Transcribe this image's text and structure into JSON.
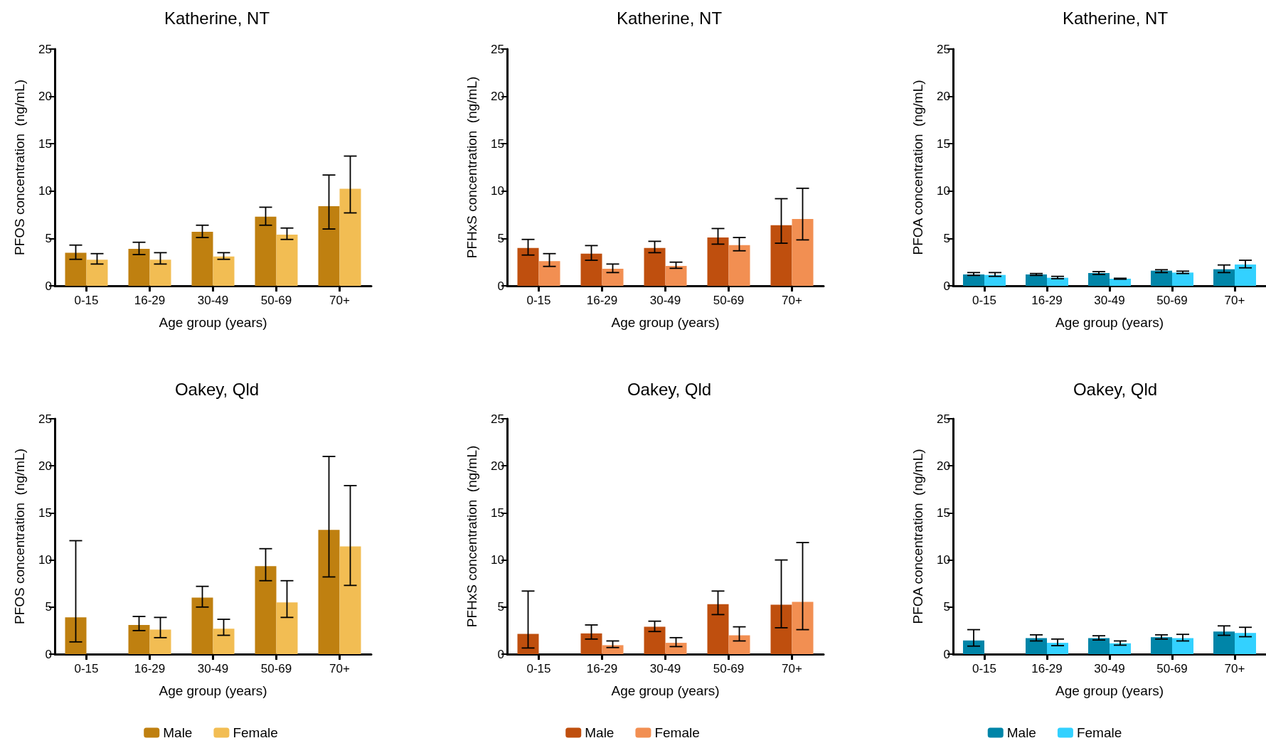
{
  "chart_data": [
    {
      "type": "bar",
      "title": "Katherine, NT",
      "xlabel": "Age group (years)",
      "ylabel": "PFOS concentration  (ng/mL)",
      "categories": [
        "0-15",
        "16-29",
        "30-49",
        "50-69",
        "70+"
      ],
      "ylim": [
        0,
        25
      ],
      "yticks": [
        0,
        5,
        10,
        15,
        20,
        25
      ],
      "series": [
        {
          "color": "#bf8010",
          "values": [
            3.5,
            3.9,
            5.7,
            7.3,
            8.4
          ],
          "errors": [
            [
              2.8,
              4.3
            ],
            [
              3.3,
              4.6
            ],
            [
              5.1,
              6.4
            ],
            [
              6.4,
              8.3
            ],
            [
              6.0,
              11.7
            ]
          ]
        },
        {
          "color": "#f2bd53",
          "values": [
            2.75,
            2.75,
            3.1,
            5.4,
            10.25
          ],
          "errors": [
            [
              2.3,
              3.4
            ],
            [
              2.3,
              3.5
            ],
            [
              2.8,
              3.5
            ],
            [
              4.9,
              6.1
            ],
            [
              7.7,
              13.7
            ]
          ]
        }
      ]
    },
    {
      "type": "bar",
      "title": "Katherine, NT",
      "xlabel": "Age group (years)",
      "ylabel": "PFHxS concentration  (ng/mL)",
      "categories": [
        "0-15",
        "16-29",
        "30-49",
        "50-69",
        "70+"
      ],
      "ylim": [
        0,
        25
      ],
      "yticks": [
        0,
        5,
        10,
        15,
        20,
        25
      ],
      "series": [
        {
          "color": "#bf4f0e",
          "values": [
            4.0,
            3.4,
            4.0,
            5.1,
            6.4
          ],
          "errors": [
            [
              3.25,
              4.9
            ],
            [
              2.7,
              4.25
            ],
            [
              3.5,
              4.7
            ],
            [
              4.4,
              6.05
            ],
            [
              4.5,
              9.2
            ]
          ]
        },
        {
          "color": "#f28f52",
          "values": [
            2.6,
            1.8,
            2.1,
            4.3,
            7.05
          ],
          "errors": [
            [
              2.05,
              3.4
            ],
            [
              1.4,
              2.3
            ],
            [
              1.85,
              2.5
            ],
            [
              3.7,
              5.1
            ],
            [
              4.85,
              10.3
            ]
          ]
        }
      ]
    },
    {
      "type": "bar",
      "title": "Katherine, NT",
      "xlabel": "Age group (years)",
      "ylabel": "PFOA concentration  (ng/mL)",
      "categories": [
        "0-15",
        "16-29",
        "30-49",
        "50-69",
        "70+"
      ],
      "ylim": [
        0,
        25
      ],
      "yticks": [
        0,
        5,
        10,
        15,
        20,
        25
      ],
      "series": [
        {
          "color": "#0085a8",
          "values": [
            1.2,
            1.2,
            1.35,
            1.6,
            1.75
          ],
          "errors": [
            [
              1.1,
              1.4
            ],
            [
              1.1,
              1.3
            ],
            [
              1.2,
              1.5
            ],
            [
              1.4,
              1.7
            ],
            [
              1.4,
              2.2
            ]
          ]
        },
        {
          "color": "#33d1ff",
          "values": [
            1.15,
            0.85,
            0.75,
            1.4,
            2.25
          ],
          "errors": [
            [
              1.0,
              1.4
            ],
            [
              0.75,
              1.0
            ],
            [
              0.7,
              0.8
            ],
            [
              1.3,
              1.55
            ],
            [
              1.9,
              2.7
            ]
          ]
        }
      ]
    },
    {
      "type": "bar",
      "title": "Oakey, Qld",
      "xlabel": "Age group (years)",
      "ylabel": "PFOS concentration  (ng/mL)",
      "categories": [
        "0-15",
        "16-29",
        "30-49",
        "50-69",
        "70+"
      ],
      "ylim": [
        0,
        25
      ],
      "yticks": [
        0,
        5,
        10,
        15,
        20,
        25
      ],
      "legend": "bottom",
      "series": [
        {
          "name": "Male",
          "color": "#bf8010",
          "values": [
            3.9,
            3.1,
            6.0,
            9.35,
            13.2
          ],
          "errors": [
            [
              1.3,
              12.05
            ],
            [
              2.5,
              4.0
            ],
            [
              5.0,
              7.2
            ],
            [
              7.8,
              11.2
            ],
            [
              8.2,
              21.0
            ]
          ]
        },
        {
          "name": "Female",
          "color": "#f2bd53",
          "values": [
            null,
            2.6,
            2.7,
            5.5,
            11.45
          ],
          "errors": [
            null,
            [
              1.75,
              3.9
            ],
            [
              2.0,
              3.7
            ],
            [
              3.9,
              7.8
            ],
            [
              7.3,
              17.9
            ]
          ]
        }
      ]
    },
    {
      "type": "bar",
      "title": "Oakey, Qld",
      "xlabel": "Age group (years)",
      "ylabel": "PFHxS concentration  (ng/mL)",
      "categories": [
        "0-15",
        "16-29",
        "30-49",
        "50-69",
        "70+"
      ],
      "ylim": [
        0,
        25
      ],
      "yticks": [
        0,
        5,
        10,
        15,
        20,
        25
      ],
      "legend": "bottom",
      "series": [
        {
          "name": "Male",
          "color": "#bf4f0e",
          "values": [
            2.15,
            2.2,
            2.9,
            5.3,
            5.25
          ],
          "errors": [
            [
              0.65,
              6.7
            ],
            [
              1.6,
              3.1
            ],
            [
              2.4,
              3.5
            ],
            [
              4.2,
              6.7
            ],
            [
              2.8,
              10.0
            ]
          ]
        },
        {
          "name": "Female",
          "color": "#f28f52",
          "values": [
            null,
            0.95,
            1.2,
            2.0,
            5.55
          ],
          "errors": [
            null,
            [
              0.7,
              1.4
            ],
            [
              0.8,
              1.75
            ],
            [
              1.4,
              2.9
            ],
            [
              2.6,
              11.85
            ]
          ]
        }
      ]
    },
    {
      "type": "bar",
      "title": "Oakey, Qld",
      "xlabel": "Age group (years)",
      "ylabel": "PFOA concentration  (ng/mL)",
      "categories": [
        "0-15",
        "16-29",
        "30-49",
        "50-69",
        "70+"
      ],
      "ylim": [
        0,
        25
      ],
      "yticks": [
        0,
        5,
        10,
        15,
        20,
        25
      ],
      "legend": "bottom",
      "series": [
        {
          "name": "Male",
          "color": "#0085a8",
          "values": [
            1.45,
            1.7,
            1.7,
            1.8,
            2.4
          ],
          "errors": [
            [
              0.85,
              2.6
            ],
            [
              1.4,
              2.05
            ],
            [
              1.5,
              1.95
            ],
            [
              1.6,
              2.05
            ],
            [
              2.0,
              3.0
            ]
          ]
        },
        {
          "name": "Female",
          "color": "#33d1ff",
          "values": [
            null,
            1.2,
            1.15,
            1.7,
            2.25
          ],
          "errors": [
            null,
            [
              0.9,
              1.6
            ],
            [
              0.95,
              1.4
            ],
            [
              1.4,
              2.1
            ],
            [
              1.85,
              2.85
            ]
          ]
        }
      ]
    }
  ]
}
